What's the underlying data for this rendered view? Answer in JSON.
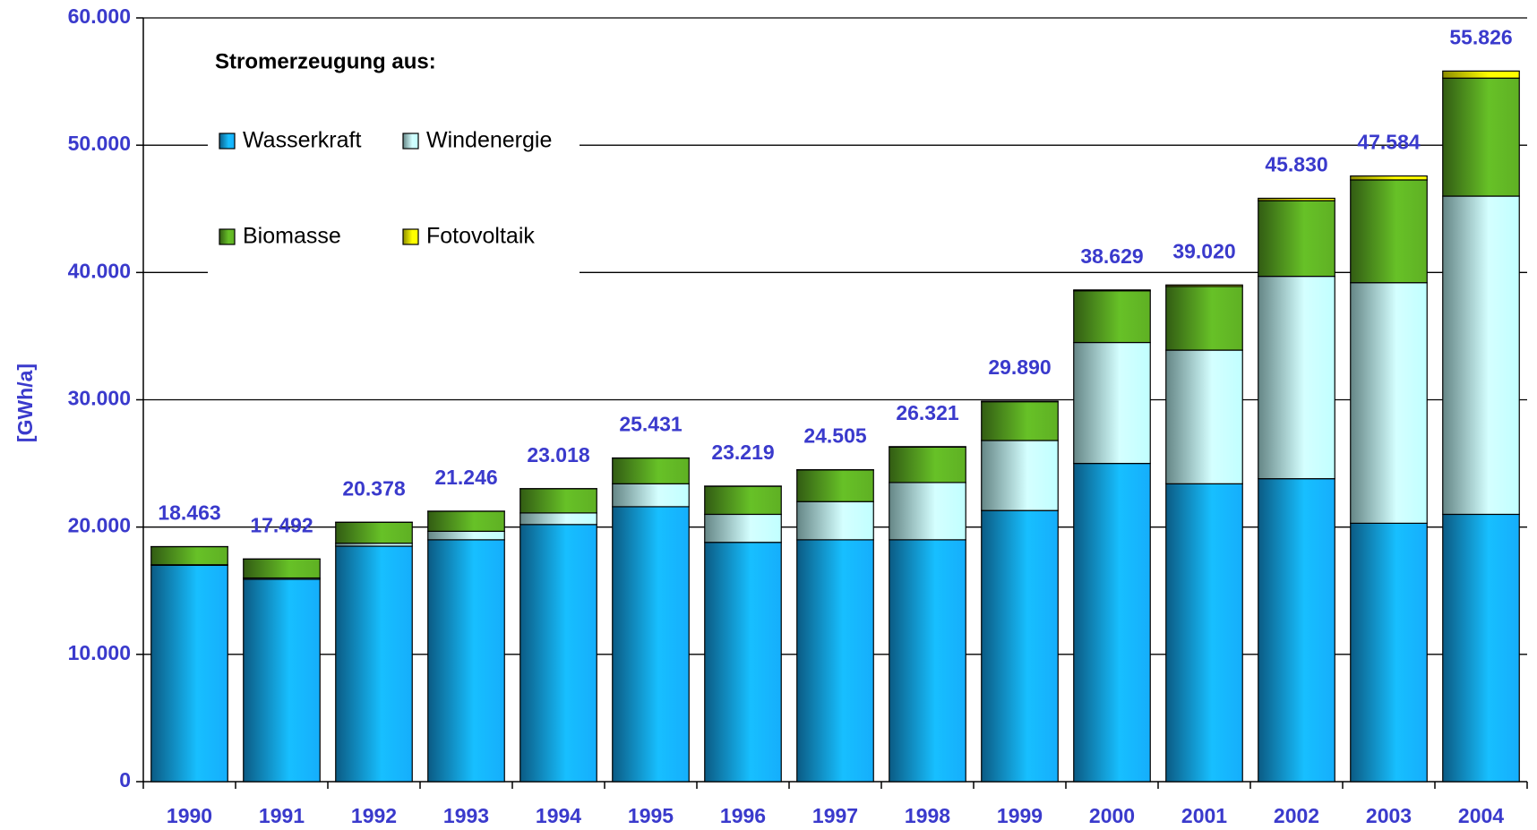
{
  "chart_data": {
    "type": "stacked_bar",
    "y_label": "[GWh/a]",
    "legend": {
      "title": "Stromerzeugung aus:"
    },
    "categories": [
      "1990",
      "1991",
      "1992",
      "1993",
      "1994",
      "1995",
      "1996",
      "1997",
      "1998",
      "1999",
      "2000",
      "2001",
      "2002",
      "2003",
      "2004"
    ],
    "series": [
      {
        "name": "Wasserkraft",
        "color": "#14a6f0",
        "values": [
          17000,
          15900,
          18500,
          19000,
          20200,
          21600,
          18800,
          19000,
          19000,
          21300,
          25000,
          23400,
          23800,
          20300,
          21000
        ]
      },
      {
        "name": "Windenergie",
        "color": "#b8f4f4",
        "values": [
          40,
          100,
          230,
          670,
          910,
          1800,
          2200,
          3000,
          4500,
          5500,
          9500,
          10500,
          15900,
          18900,
          25000
        ]
      },
      {
        "name": "Biomasse",
        "color": "#5aa822",
        "values": [
          1422,
          1490,
          1645,
          1573,
          1902,
          2020,
          2207,
          2487,
          2786,
          3048,
          4065,
          5004,
          5942,
          8071,
          9269
        ]
      },
      {
        "name": "Fotovoltaik",
        "color": "#ffff00",
        "values": [
          1,
          2,
          3,
          3,
          6,
          11,
          12,
          18,
          35,
          42,
          64,
          116,
          188,
          313,
          557
        ]
      }
    ],
    "totals": {
      "values": [
        18463,
        17492,
        20378,
        21246,
        23018,
        25431,
        23219,
        24505,
        26321,
        29890,
        38629,
        39020,
        45830,
        47584,
        55826
      ],
      "value_labels": [
        "18.463",
        "17.492",
        "20.378",
        "21.246",
        "23.018",
        "25.431",
        "23.219",
        "24.505",
        "26.321",
        "29.890",
        "38.629",
        "39.020",
        "45.830",
        "47.584",
        "55.826"
      ]
    },
    "ylim": [
      0,
      60000
    ],
    "yticks": [
      0,
      {
        "value": 10000,
        "label": "10.000"
      },
      {
        "value": 20000,
        "label": "20.000"
      },
      {
        "value": 30000,
        "label": "30.000"
      },
      {
        "value": 40000,
        "label": "40.000"
      },
      {
        "value": 50000,
        "label": "50.000"
      },
      {
        "value": 60000,
        "label": "60.000"
      }
    ],
    "grid": true
  }
}
